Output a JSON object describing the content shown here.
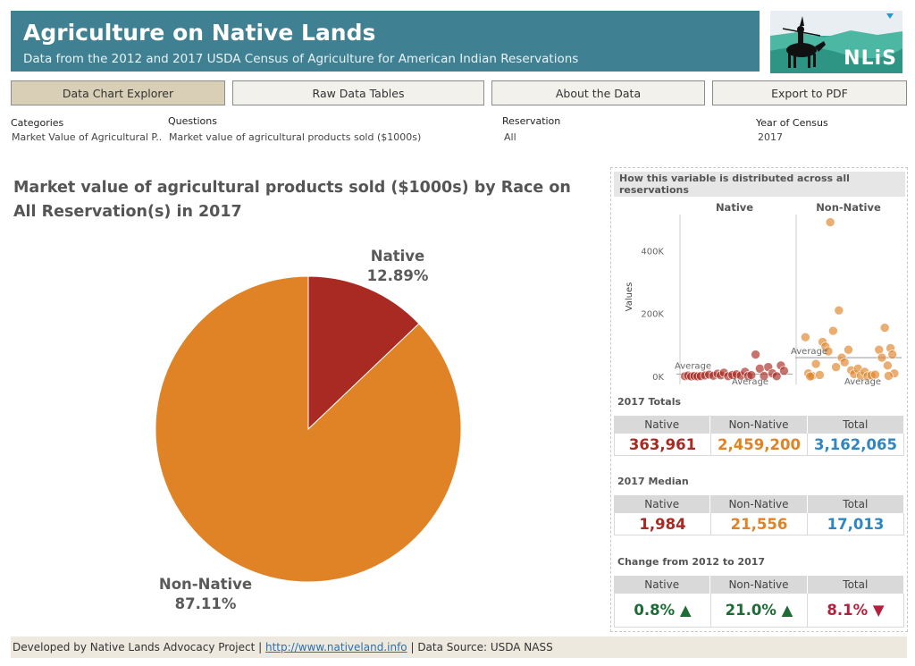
{
  "header": {
    "title": "Agriculture on Native Lands",
    "subtitle": "Data from the 2012 and 2017 USDA Census of Agriculture for American Indian Reservations",
    "logo_text": "NLiS"
  },
  "nav": [
    {
      "label": "Data Chart Explorer",
      "active": true
    },
    {
      "label": "Raw Data Tables"
    },
    {
      "label": "About the Data"
    },
    {
      "label": "Export to PDF"
    }
  ],
  "filters": {
    "categories_label": "Categories",
    "categories_value": "Market Value of Agricultural P..",
    "questions_label": "Questions",
    "questions_value": "Market value of agricultural products sold ($1000s)",
    "reservation_label": "Reservation",
    "reservation_value": "All",
    "year_label": "Year of Census",
    "year_value": "2017"
  },
  "colors": {
    "native": "#a92a22",
    "non_native": "#e08226",
    "total": "#2f86c1",
    "up": "#1e6b36",
    "down": "#b3213e"
  },
  "chart_data": [
    {
      "type": "pie",
      "title": "Market value of agricultural products sold ($1000s) by Race on All Reservation(s) in 2017",
      "slices": [
        {
          "label": "Native",
          "percent_label": "12.89%",
          "value": 12.89,
          "color": "#a92a22"
        },
        {
          "label": "Non-Native",
          "percent_label": "87.11%",
          "value": 87.11,
          "color": "#e08226"
        }
      ]
    },
    {
      "type": "scatter",
      "title": "How this variable is distributed across all reservations",
      "columns": [
        "Native",
        "Non-Native"
      ],
      "ylabel": "Values",
      "yticks": [
        "0K",
        "200K",
        "400K"
      ],
      "ylim": [
        -25000,
        520000
      ],
      "average_label": "Average",
      "native_average": 8000,
      "non_native_average": 60000,
      "native_points": [
        {
          "x": 0.03,
          "y": 1000
        },
        {
          "x": 0.06,
          "y": 3000
        },
        {
          "x": 0.09,
          "y": 500
        },
        {
          "x": 0.12,
          "y": 2000
        },
        {
          "x": 0.15,
          "y": 800
        },
        {
          "x": 0.18,
          "y": 1500
        },
        {
          "x": 0.22,
          "y": 3500
        },
        {
          "x": 0.26,
          "y": 6000
        },
        {
          "x": 0.3,
          "y": 2500
        },
        {
          "x": 0.34,
          "y": 9000
        },
        {
          "x": 0.37,
          "y": 4000
        },
        {
          "x": 0.4,
          "y": 12000
        },
        {
          "x": 0.44,
          "y": 1000
        },
        {
          "x": 0.48,
          "y": 5000
        },
        {
          "x": 0.52,
          "y": 7000
        },
        {
          "x": 0.56,
          "y": 3000
        },
        {
          "x": 0.6,
          "y": 15000
        },
        {
          "x": 0.63,
          "y": 1800
        },
        {
          "x": 0.66,
          "y": 4500
        },
        {
          "x": 0.7,
          "y": 70000
        },
        {
          "x": 0.74,
          "y": 25000
        },
        {
          "x": 0.78,
          "y": 2000
        },
        {
          "x": 0.82,
          "y": 30000
        },
        {
          "x": 0.86,
          "y": 10000
        },
        {
          "x": 0.9,
          "y": 1200
        },
        {
          "x": 0.94,
          "y": 35000
        },
        {
          "x": 0.97,
          "y": 18000
        }
      ],
      "non_native_points": [
        {
          "x": 0.05,
          "y": 125000
        },
        {
          "x": 0.08,
          "y": 10000
        },
        {
          "x": 0.12,
          "y": 2000
        },
        {
          "x": 0.16,
          "y": 40000
        },
        {
          "x": 0.2,
          "y": 5000
        },
        {
          "x": 0.23,
          "y": 110000
        },
        {
          "x": 0.26,
          "y": 95000
        },
        {
          "x": 0.29,
          "y": 80000
        },
        {
          "x": 0.31,
          "y": 490000
        },
        {
          "x": 0.34,
          "y": 145000
        },
        {
          "x": 0.37,
          "y": 30000
        },
        {
          "x": 0.4,
          "y": 210000
        },
        {
          "x": 0.43,
          "y": 60000
        },
        {
          "x": 0.46,
          "y": 45000
        },
        {
          "x": 0.5,
          "y": 85000
        },
        {
          "x": 0.53,
          "y": 20000
        },
        {
          "x": 0.56,
          "y": 8000
        },
        {
          "x": 0.6,
          "y": 25000
        },
        {
          "x": 0.63,
          "y": 3000
        },
        {
          "x": 0.67,
          "y": 15000
        },
        {
          "x": 0.7,
          "y": 1000
        },
        {
          "x": 0.74,
          "y": 4000
        },
        {
          "x": 0.78,
          "y": 6000
        },
        {
          "x": 0.82,
          "y": 85000
        },
        {
          "x": 0.85,
          "y": 60000
        },
        {
          "x": 0.88,
          "y": 155000
        },
        {
          "x": 0.91,
          "y": 35000
        },
        {
          "x": 0.94,
          "y": 90000
        },
        {
          "x": 0.96,
          "y": 70000
        },
        {
          "x": 0.98,
          "y": 10000
        },
        {
          "x": 0.92,
          "y": 2000
        },
        {
          "x": 0.1,
          "y": 500
        }
      ]
    }
  ],
  "panel": {
    "header": "How this variable is distributed across all reservations",
    "columns": [
      "Native",
      "Non-Native",
      "Total"
    ],
    "totals_title": "2017 Totals",
    "totals": {
      "native": "363,961",
      "non_native": "2,459,200",
      "total": "3,162,065"
    },
    "median_title": "2017 Median",
    "median": {
      "native": "1,984",
      "non_native": "21,556",
      "total": "17,013"
    },
    "change_title": "Change from 2012 to 2017",
    "change": [
      {
        "value": "0.8%",
        "dir": "up"
      },
      {
        "value": "21.0%",
        "dir": "up"
      },
      {
        "value": "8.1%",
        "dir": "down"
      }
    ]
  },
  "footer": {
    "prefix": "Developed by Native Lands Advocacy Project | ",
    "link": "http://www.nativeland.info",
    "suffix": " | Data Source: USDA NASS"
  }
}
